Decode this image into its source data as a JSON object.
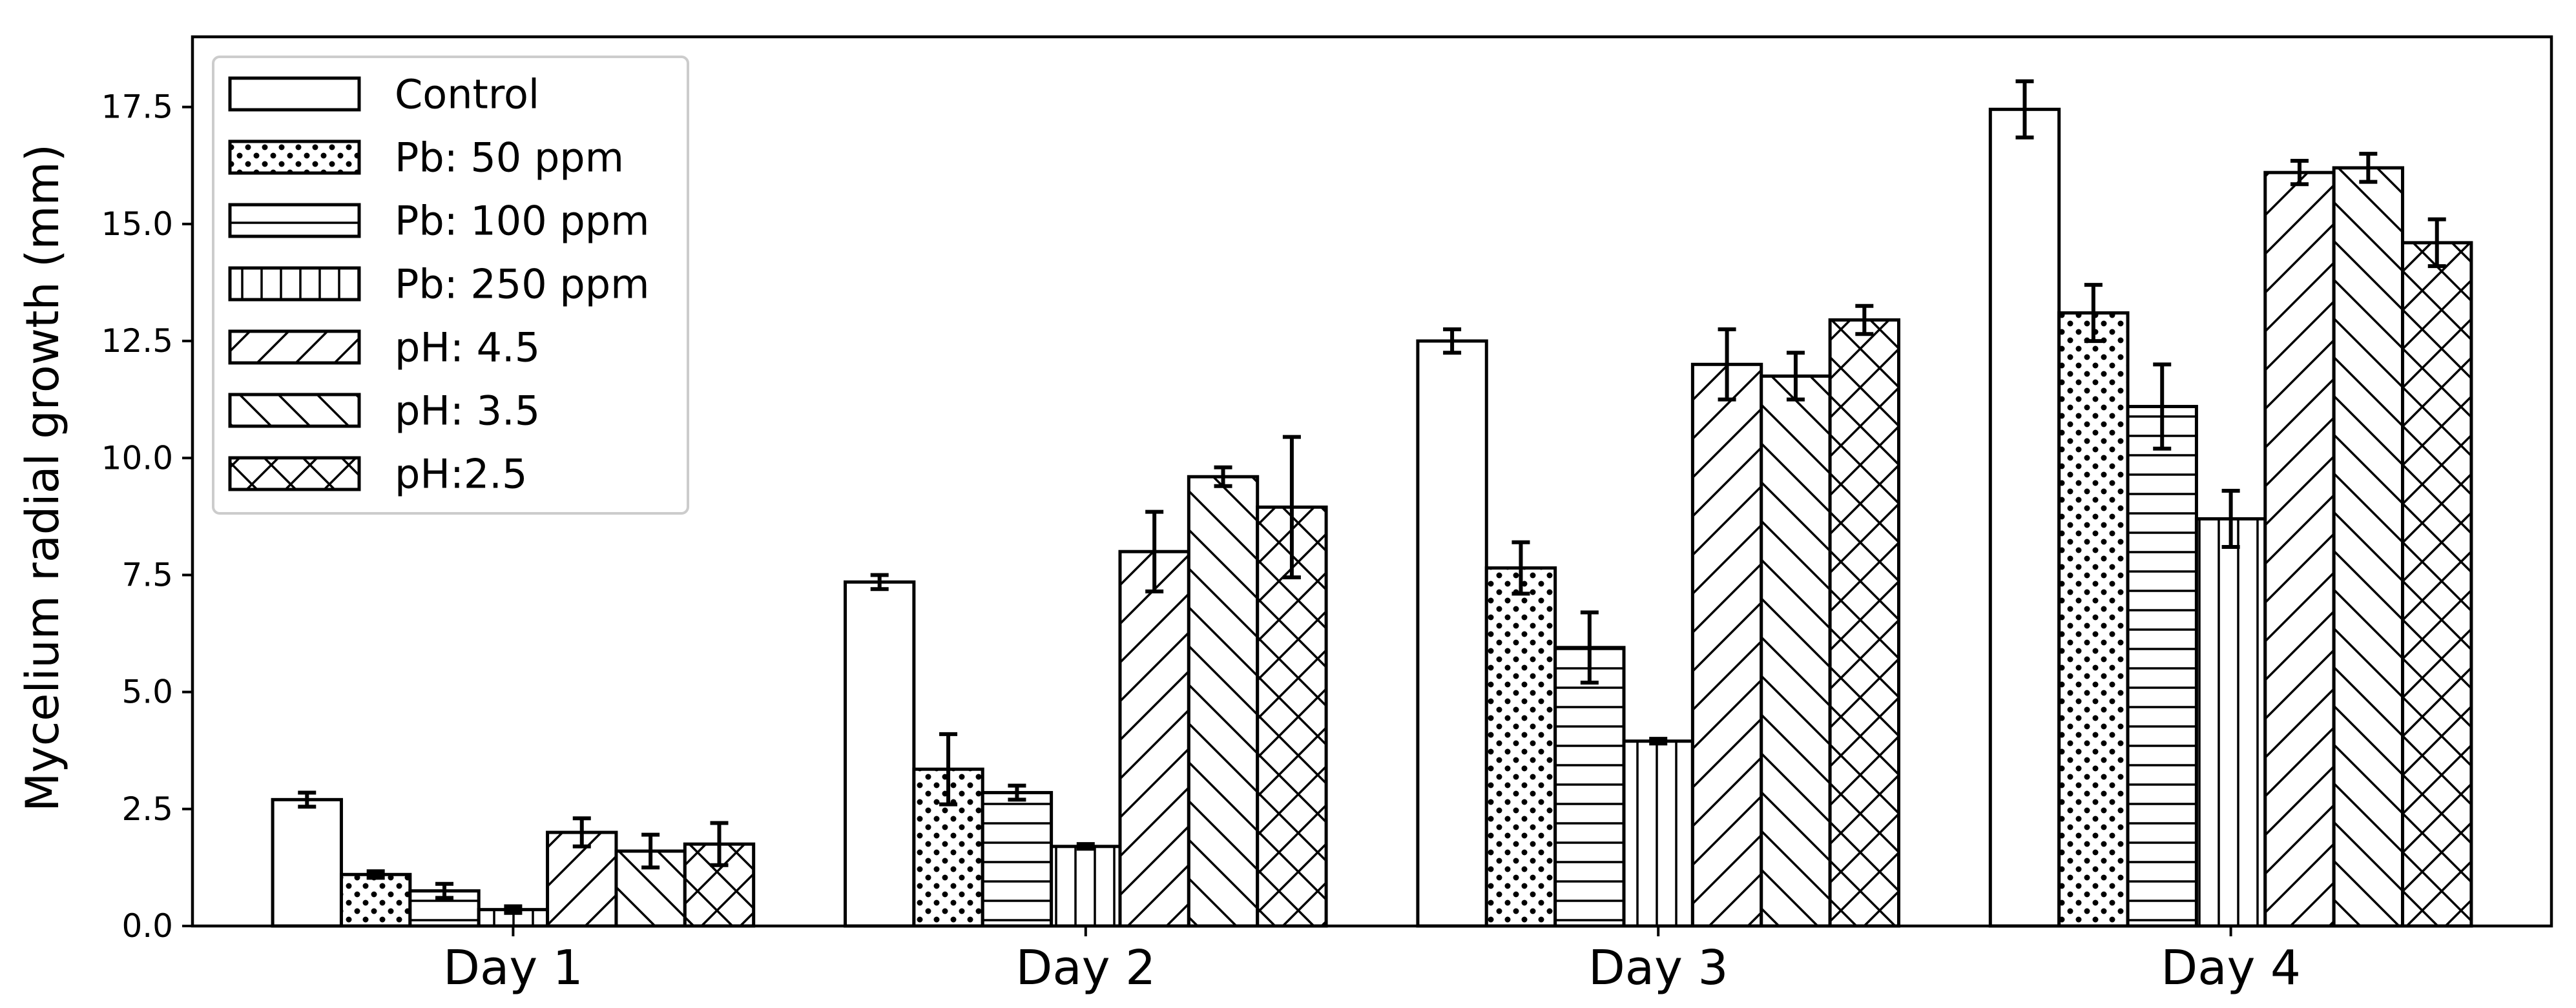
{
  "chart_data": {
    "type": "bar",
    "title": "",
    "xlabel": "",
    "ylabel": "Mycelium radial growth (mm)",
    "ylim": [
      0,
      19
    ],
    "yticks": [
      "0.0",
      "2.5",
      "5.0",
      "7.5",
      "10.0",
      "12.5",
      "15.0",
      "17.5"
    ],
    "legend_position": "top-left",
    "categories": [
      "Day 1",
      "Day 2",
      "Day 3",
      "Day 4"
    ],
    "series": [
      {
        "name": "Control",
        "pattern": "none",
        "values": [
          2.7,
          7.35,
          12.5,
          17.45
        ],
        "errors": [
          0.15,
          0.15,
          0.25,
          0.6
        ]
      },
      {
        "name": "Pb: 50 ppm",
        "pattern": "dots",
        "values": [
          1.1,
          3.35,
          7.65,
          13.1
        ],
        "errors": [
          0.07,
          0.75,
          0.55,
          0.6
        ]
      },
      {
        "name": "Pb: 100 ppm",
        "pattern": "horizontal",
        "values": [
          0.75,
          2.85,
          5.95,
          11.1
        ],
        "errors": [
          0.15,
          0.15,
          0.75,
          0.9
        ]
      },
      {
        "name": "Pb: 250 ppm",
        "pattern": "vertical",
        "values": [
          0.35,
          1.7,
          3.95,
          8.7
        ],
        "errors": [
          0.07,
          0.05,
          0.05,
          0.6
        ]
      },
      {
        "name": "pH: 4.5",
        "pattern": "forward-diagonal",
        "values": [
          2.0,
          8.0,
          12.0,
          16.1
        ],
        "errors": [
          0.3,
          0.85,
          0.75,
          0.25
        ]
      },
      {
        "name": "pH: 3.5",
        "pattern": "back-diagonal",
        "values": [
          1.6,
          9.6,
          11.75,
          16.2
        ],
        "errors": [
          0.35,
          0.2,
          0.5,
          0.3
        ]
      },
      {
        "name": "pH:2.5",
        "pattern": "crosshatch",
        "values": [
          1.75,
          8.95,
          12.95,
          14.6
        ],
        "errors": [
          0.45,
          1.5,
          0.3,
          0.5
        ]
      }
    ]
  }
}
